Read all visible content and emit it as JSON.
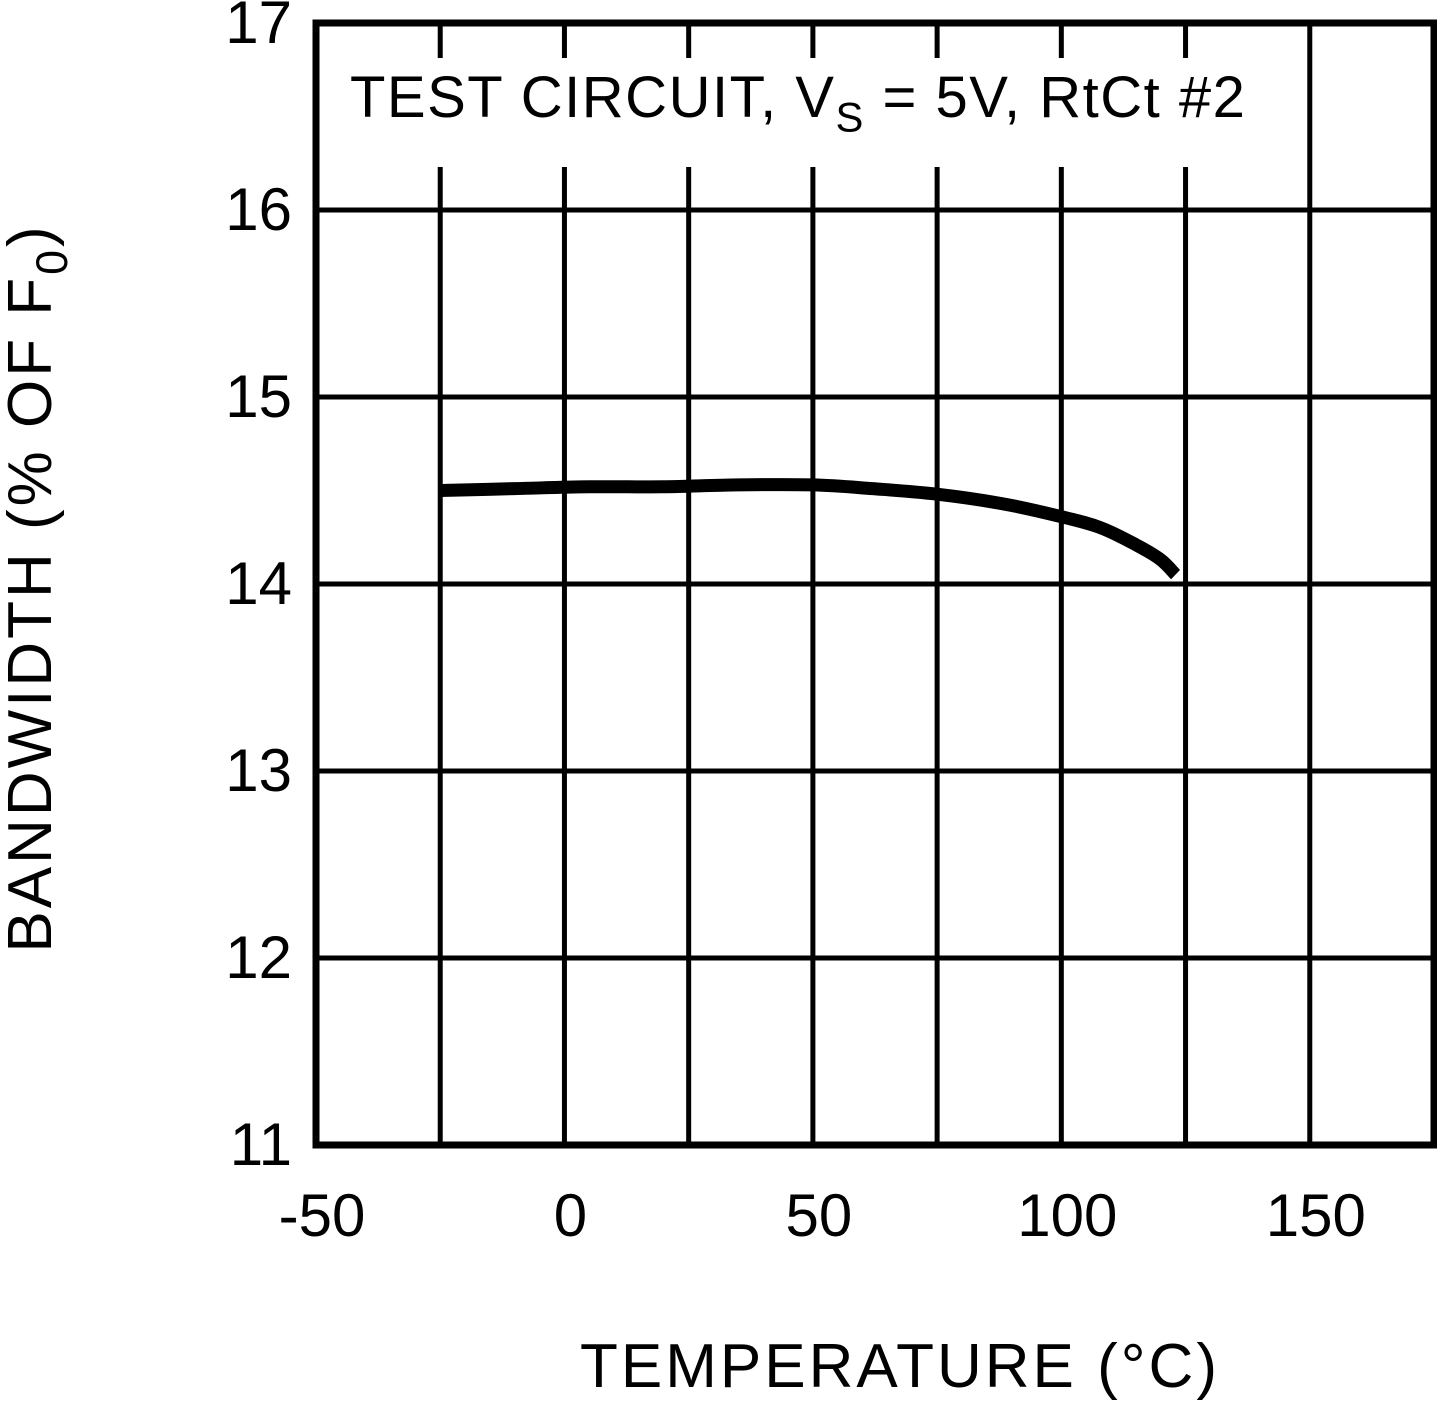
{
  "figure": {
    "background": "#ffffff",
    "ink_color": "#000000"
  },
  "chart_data": {
    "type": "line",
    "title": "TEST CIRCUIT, VS = 5V, RtCt #2",
    "title_parts": [
      {
        "text": "TEST CIRCUIT, V"
      },
      {
        "text": "S",
        "sub": true
      },
      {
        "text": " = 5V, RtCt #2"
      }
    ],
    "xlabel": "TEMPERATURE (°C)",
    "ylabel": "BANDWIDTH (% OF F0)",
    "ylabel_parts": [
      {
        "text": "BANDWIDTH (% OF F"
      },
      {
        "text": "0",
        "sub": true
      },
      {
        "text": ")"
      }
    ],
    "xlim": [
      -50,
      175
    ],
    "ylim": [
      11,
      17
    ],
    "x_grid_step": 25,
    "y_grid_step": 1,
    "grid": true,
    "legend_position": "none",
    "x_ticks": [
      {
        "value": -50,
        "label": "-50"
      },
      {
        "value": 0,
        "label": "0"
      },
      {
        "value": 50,
        "label": "50"
      },
      {
        "value": 100,
        "label": "100"
      },
      {
        "value": 150,
        "label": "150"
      }
    ],
    "y_ticks": [
      {
        "value": 17,
        "label": "17"
      },
      {
        "value": 16,
        "label": "16"
      },
      {
        "value": 15,
        "label": "15"
      },
      {
        "value": 14,
        "label": "14"
      },
      {
        "value": 13,
        "label": "13"
      },
      {
        "value": 12,
        "label": "12"
      },
      {
        "value": 11,
        "label": "11"
      }
    ],
    "series": [
      {
        "name": "BANDWIDTH (% OF F0)",
        "points": [
          [
            -25,
            14.5
          ],
          [
            -10,
            14.51
          ],
          [
            5,
            14.52
          ],
          [
            20,
            14.52
          ],
          [
            35,
            14.53
          ],
          [
            50,
            14.53
          ],
          [
            62,
            14.51
          ],
          [
            75,
            14.48
          ],
          [
            88,
            14.43
          ],
          [
            100,
            14.36
          ],
          [
            108,
            14.3
          ],
          [
            115,
            14.21
          ],
          [
            120,
            14.13
          ],
          [
            123,
            14.05
          ]
        ]
      }
    ]
  }
}
